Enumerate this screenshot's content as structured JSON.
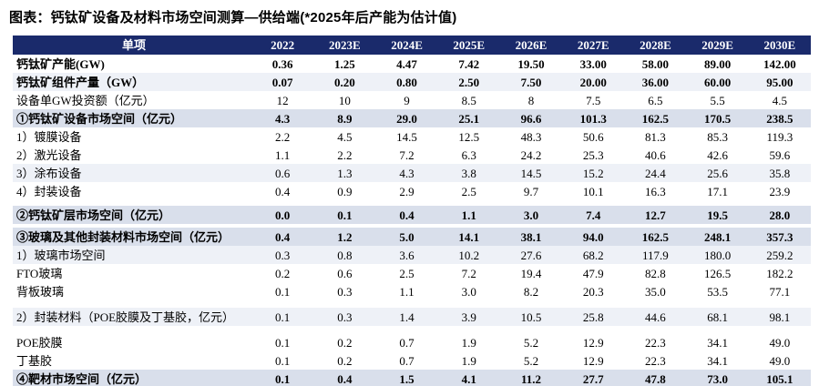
{
  "title": "图表：钙钛矿设备及材料市场空间测算—供给端(*2025年后产能为估计值)",
  "colors": {
    "header_bg": "#1a2a6b",
    "header_text": "#ffffff",
    "section_row_bg": "#d9dfeb",
    "stripe_row_bg": "#eef1f7",
    "bottom_border": "#1a2a6b"
  },
  "chart_data": {
    "type": "table",
    "title": "钙钛矿设备及材料市场空间测算—供给端(*2025年后产能为估计值)",
    "columns": [
      "单项",
      "2022",
      "2023E",
      "2024E",
      "2025E",
      "2026E",
      "2027E",
      "2028E",
      "2029E",
      "2030E"
    ],
    "rows": [
      {
        "label": "钙钛矿产能(GW)",
        "values": [
          "0.36",
          "1.25",
          "4.47",
          "7.42",
          "19.50",
          "33.00",
          "58.00",
          "89.00",
          "142.00"
        ],
        "style": "plain",
        "bold": true,
        "indent": false,
        "gap_before": 0
      },
      {
        "label": "钙钛矿组件产量（GW）",
        "values": [
          "0.07",
          "0.20",
          "0.80",
          "2.50",
          "7.50",
          "20.00",
          "36.00",
          "60.00",
          "95.00"
        ],
        "style": "stripe",
        "bold": true,
        "indent": false,
        "gap_before": 0
      },
      {
        "label": "设备单GW投资额（亿元）",
        "values": [
          "12",
          "10",
          "9",
          "8.5",
          "8",
          "7.5",
          "6.5",
          "5.5",
          "4.5"
        ],
        "style": "plain",
        "bold": false,
        "indent": false,
        "gap_before": 0
      },
      {
        "label": "①钙钛矿设备市场空间（亿元）",
        "values": [
          "4.3",
          "8.9",
          "29.0",
          "25.1",
          "96.6",
          "101.3",
          "162.5",
          "170.5",
          "238.5"
        ],
        "style": "section",
        "bold": true,
        "indent": false,
        "gap_before": 0
      },
      {
        "label": "1）镀膜设备",
        "values": [
          "2.2",
          "4.5",
          "14.5",
          "12.5",
          "48.3",
          "50.6",
          "81.3",
          "85.3",
          "119.3"
        ],
        "style": "plain",
        "bold": false,
        "indent": false,
        "gap_before": 0
      },
      {
        "label": "2）激光设备",
        "values": [
          "1.1",
          "2.2",
          "7.2",
          "6.3",
          "24.2",
          "25.3",
          "40.6",
          "42.6",
          "59.6"
        ],
        "style": "plain",
        "bold": false,
        "indent": false,
        "gap_before": 0
      },
      {
        "label": "3）涂布设备",
        "values": [
          "0.6",
          "1.3",
          "4.3",
          "3.8",
          "14.5",
          "15.2",
          "24.4",
          "25.6",
          "35.8"
        ],
        "style": "stripe",
        "bold": false,
        "indent": false,
        "gap_before": 0
      },
      {
        "label": "4）封装设备",
        "values": [
          "0.4",
          "0.9",
          "2.9",
          "2.5",
          "9.7",
          "10.1",
          "16.3",
          "17.1",
          "23.9"
        ],
        "style": "plain",
        "bold": false,
        "indent": false,
        "gap_before": 0
      },
      {
        "label": "②钙钛矿层市场空间（亿元）",
        "values": [
          "0.0",
          "0.1",
          "0.4",
          "1.1",
          "3.0",
          "7.4",
          "12.7",
          "19.5",
          "28.0"
        ],
        "style": "section",
        "bold": true,
        "indent": false,
        "gap_before": 6
      },
      {
        "label": "③玻璃及其他封装材料市场空间（亿元）",
        "values": [
          "0.4",
          "1.2",
          "5.0",
          "14.1",
          "38.1",
          "94.0",
          "162.5",
          "248.1",
          "357.3"
        ],
        "style": "section",
        "bold": true,
        "indent": false,
        "gap_before": 4
      },
      {
        "label": "1）玻璃市场空间",
        "values": [
          "0.3",
          "0.8",
          "3.6",
          "10.2",
          "27.6",
          "68.2",
          "117.9",
          "180.0",
          "259.2"
        ],
        "style": "stripe",
        "bold": false,
        "indent": false,
        "gap_before": 0
      },
      {
        "label": "FTO玻璃",
        "values": [
          "0.2",
          "0.6",
          "2.5",
          "7.2",
          "19.4",
          "47.9",
          "82.8",
          "126.5",
          "182.2"
        ],
        "style": "plain",
        "bold": false,
        "indent": true,
        "gap_before": 0
      },
      {
        "label": "背板玻璃",
        "values": [
          "0.1",
          "0.3",
          "1.1",
          "3.0",
          "8.2",
          "20.3",
          "35.0",
          "53.5",
          "77.1"
        ],
        "style": "plain",
        "bold": false,
        "indent": true,
        "gap_before": 0
      },
      {
        "label": "2）封装材料（POE胶膜及丁基胶，亿元）",
        "values": [
          "0.1",
          "0.3",
          "1.4",
          "3.9",
          "10.5",
          "25.8",
          "44.6",
          "68.1",
          "98.1"
        ],
        "style": "stripe",
        "bold": false,
        "indent": false,
        "gap_before": 8
      },
      {
        "label": "POE胶膜",
        "values": [
          "0.1",
          "0.2",
          "0.7",
          "1.9",
          "5.2",
          "12.9",
          "22.3",
          "34.1",
          "49.0"
        ],
        "style": "plain",
        "bold": false,
        "indent": true,
        "gap_before": 8
      },
      {
        "label": "丁基胶",
        "values": [
          "0.1",
          "0.2",
          "0.7",
          "1.9",
          "5.2",
          "12.9",
          "22.3",
          "34.1",
          "49.0"
        ],
        "style": "plain",
        "bold": false,
        "indent": true,
        "gap_before": 0
      },
      {
        "label": "④靶材市场空间（亿元）",
        "values": [
          "0.1",
          "0.4",
          "1.5",
          "4.1",
          "11.2",
          "27.7",
          "47.8",
          "73.0",
          "105.1"
        ],
        "style": "section",
        "bold": true,
        "indent": false,
        "gap_before": 0
      }
    ]
  }
}
